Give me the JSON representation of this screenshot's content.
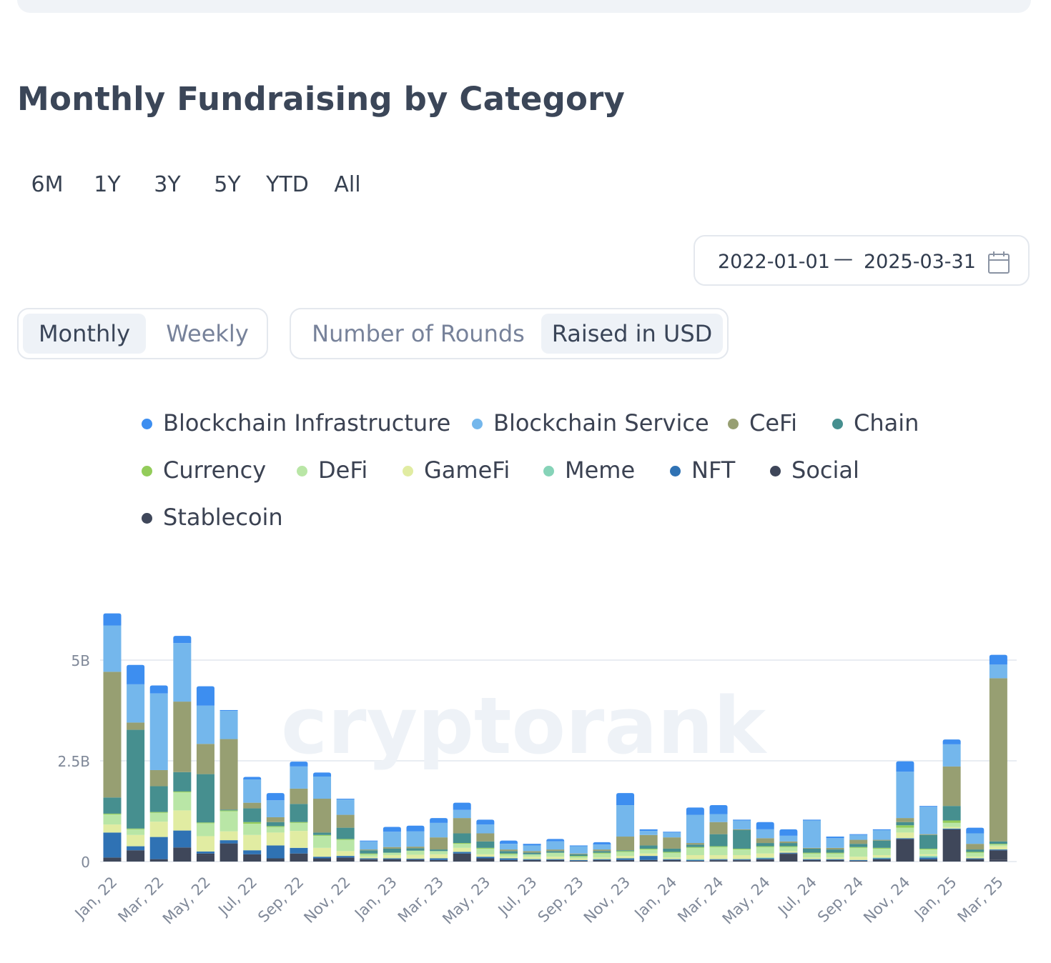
{
  "header": {
    "title": "Monthly Fundraising by Category"
  },
  "range_tabs": [
    "6M",
    "1Y",
    "3Y",
    "5Y",
    "YTD",
    "All"
  ],
  "date_range": {
    "start": "2022-01-01",
    "separator": "—",
    "end": "2025-03-31"
  },
  "period_toggle": {
    "options": [
      "Monthly",
      "Weekly"
    ],
    "active": "Monthly"
  },
  "metric_toggle": {
    "options": [
      "Number of Rounds",
      "Raised in USD"
    ],
    "active": "Raised in USD"
  },
  "legend": [
    {
      "label": "Blockchain Infrastructure",
      "color": "#3d8ef0"
    },
    {
      "label": "Blockchain Service",
      "color": "#74b7ec"
    },
    {
      "label": "CeFi",
      "color": "#979f72"
    },
    {
      "label": "Chain",
      "color": "#468f8f"
    },
    {
      "label": "Currency",
      "color": "#93cc5a"
    },
    {
      "label": "DeFi",
      "color": "#b9e6a6"
    },
    {
      "label": "GameFi",
      "color": "#e1eca2"
    },
    {
      "label": "Meme",
      "color": "#86d3b8"
    },
    {
      "label": "NFT",
      "color": "#2f72b4"
    },
    {
      "label": "Social",
      "color": "#3e4659"
    },
    {
      "label": "Stablecoin",
      "color": "#3f475a"
    }
  ],
  "watermark": "cryptorank",
  "chart_data": {
    "type": "bar",
    "stacked": true,
    "y_ticks": [
      "0",
      "2.5B",
      "5B"
    ],
    "ylim": [
      0,
      6.3
    ],
    "grid": true,
    "legend_position": "top",
    "x_tick_labels": [
      "Jan, 22",
      "Mar, 22",
      "May, 22",
      "Jul, 22",
      "Sep, 22",
      "Nov, 22",
      "Jan, 23",
      "Mar, 23",
      "May, 23",
      "Jul, 23",
      "Sep, 23",
      "Nov, 23",
      "Jan, 24",
      "Mar, 24",
      "May, 24",
      "Jul, 24",
      "Sep, 24",
      "Nov, 24",
      "Jan, 25",
      "Mar, 25"
    ],
    "categories": [
      "Jan, 22",
      "Feb, 22",
      "Mar, 22",
      "Apr, 22",
      "May, 22",
      "Jun, 22",
      "Jul, 22",
      "Aug, 22",
      "Sep, 22",
      "Oct, 22",
      "Nov, 22",
      "Dec, 22",
      "Jan, 23",
      "Feb, 23",
      "Mar, 23",
      "Apr, 23",
      "May, 23",
      "Jun, 23",
      "Jul, 23",
      "Aug, 23",
      "Sep, 23",
      "Oct, 23",
      "Nov, 23",
      "Dec, 23",
      "Jan, 24",
      "Feb, 24",
      "Mar, 24",
      "Apr, 24",
      "May, 24",
      "Jun, 24",
      "Jul, 24",
      "Aug, 24",
      "Sep, 24",
      "Oct, 24",
      "Nov, 24",
      "Dec, 24",
      "Jan, 25",
      "Feb, 25",
      "Mar, 25"
    ],
    "unit": "B USD",
    "series": [
      {
        "name": "Stablecoin",
        "color": "#3f475a",
        "values": [
          0.1,
          0.28,
          0.06,
          0.35,
          0.15,
          0.45,
          0.18,
          0.08,
          0.2,
          0.08,
          0.08,
          0.04,
          0.06,
          0.05,
          0.04,
          0.2,
          0.08,
          0.04,
          0.04,
          0.04,
          0.02,
          0.04,
          0.04,
          0.04,
          0.04,
          0.02,
          0.02,
          0.02,
          0.04,
          0.18,
          0.04,
          0.04,
          0.02,
          0.06,
          0.56,
          0.06,
          0.8,
          0.06,
          0.04
        ]
      },
      {
        "name": "Social",
        "color": "#3e4659",
        "values": [
          0.0,
          0.0,
          0.0,
          0.0,
          0.05,
          0.0,
          0.0,
          0.0,
          0.0,
          0.0,
          0.02,
          0.02,
          0.0,
          0.0,
          0.0,
          0.0,
          0.0,
          0.0,
          0.0,
          0.0,
          0.0,
          0.0,
          0.0,
          0.0,
          0.0,
          0.0,
          0.02,
          0.02,
          0.02,
          0.02,
          0.0,
          0.0,
          0.0,
          0.0,
          0.0,
          0.0,
          0.0,
          0.0,
          0.24
        ]
      },
      {
        "name": "NFT",
        "color": "#2f72b4",
        "values": [
          0.62,
          0.1,
          0.55,
          0.42,
          0.05,
          0.08,
          0.1,
          0.32,
          0.14,
          0.04,
          0.04,
          0.02,
          0.02,
          0.02,
          0.04,
          0.04,
          0.04,
          0.04,
          0.02,
          0.02,
          0.02,
          0.02,
          0.04,
          0.1,
          0.02,
          0.02,
          0.02,
          0.02,
          0.02,
          0.02,
          0.02,
          0.02,
          0.02,
          0.02,
          0.02,
          0.04,
          0.02,
          0.02,
          0.02
        ]
      },
      {
        "name": "Meme",
        "color": "#86d3b8",
        "values": [
          0.0,
          0.0,
          0.0,
          0.0,
          0.0,
          0.0,
          0.0,
          0.0,
          0.0,
          0.0,
          0.0,
          0.0,
          0.0,
          0.0,
          0.0,
          0.0,
          0.0,
          0.0,
          0.0,
          0.0,
          0.0,
          0.0,
          0.0,
          0.0,
          0.0,
          0.02,
          0.0,
          0.0,
          0.02,
          0.0,
          0.0,
          0.0,
          0.0,
          0.02,
          0.0,
          0.04,
          0.0,
          0.0,
          0.0
        ]
      },
      {
        "name": "GameFi",
        "color": "#e1eca2",
        "values": [
          0.2,
          0.28,
          0.38,
          0.5,
          0.38,
          0.22,
          0.38,
          0.32,
          0.42,
          0.22,
          0.12,
          0.04,
          0.08,
          0.1,
          0.1,
          0.1,
          0.06,
          0.04,
          0.06,
          0.06,
          0.04,
          0.04,
          0.06,
          0.06,
          0.04,
          0.1,
          0.1,
          0.1,
          0.1,
          0.04,
          0.04,
          0.04,
          0.08,
          0.06,
          0.14,
          0.04,
          0.04,
          0.04,
          0.08
        ]
      },
      {
        "name": "DeFi",
        "color": "#b9e6a6",
        "values": [
          0.25,
          0.14,
          0.22,
          0.45,
          0.32,
          0.5,
          0.28,
          0.14,
          0.2,
          0.3,
          0.28,
          0.06,
          0.06,
          0.1,
          0.08,
          0.1,
          0.14,
          0.06,
          0.06,
          0.1,
          0.04,
          0.1,
          0.1,
          0.1,
          0.12,
          0.18,
          0.2,
          0.14,
          0.16,
          0.1,
          0.1,
          0.1,
          0.22,
          0.16,
          0.12,
          0.12,
          0.1,
          0.1,
          0.04
        ]
      },
      {
        "name": "Currency",
        "color": "#93cc5a",
        "values": [
          0.02,
          0.02,
          0.02,
          0.02,
          0.02,
          0.02,
          0.04,
          0.02,
          0.02,
          0.02,
          0.02,
          0.02,
          0.0,
          0.0,
          0.0,
          0.02,
          0.02,
          0.02,
          0.0,
          0.0,
          0.02,
          0.02,
          0.02,
          0.02,
          0.02,
          0.02,
          0.02,
          0.02,
          0.02,
          0.02,
          0.02,
          0.02,
          0.02,
          0.02,
          0.06,
          0.02,
          0.06,
          0.02,
          0.02
        ]
      },
      {
        "name": "Chain",
        "color": "#468f8f",
        "values": [
          0.4,
          2.45,
          0.64,
          0.48,
          1.2,
          0.02,
          0.34,
          0.1,
          0.45,
          0.06,
          0.28,
          0.08,
          0.1,
          0.06,
          0.04,
          0.24,
          0.16,
          0.06,
          0.04,
          0.04,
          0.04,
          0.04,
          0.02,
          0.08,
          0.08,
          0.06,
          0.3,
          0.46,
          0.08,
          0.08,
          0.1,
          0.08,
          0.08,
          0.18,
          0.08,
          0.34,
          0.36,
          0.06,
          0.06
        ]
      },
      {
        "name": "CeFi",
        "color": "#979f72",
        "values": [
          3.12,
          0.18,
          0.4,
          1.75,
          0.75,
          1.75,
          0.14,
          0.12,
          0.38,
          0.84,
          0.32,
          0.02,
          0.04,
          0.04,
          0.3,
          0.38,
          0.2,
          0.04,
          0.04,
          0.04,
          0.02,
          0.04,
          0.34,
          0.26,
          0.28,
          0.04,
          0.3,
          0.02,
          0.12,
          0.04,
          0.02,
          0.04,
          0.1,
          0.02,
          0.1,
          0.02,
          0.98,
          0.14,
          4.05
        ]
      },
      {
        "name": "Blockchain Service",
        "color": "#74b7ec",
        "values": [
          1.15,
          0.95,
          1.9,
          1.45,
          0.95,
          0.7,
          0.58,
          0.42,
          0.55,
          0.55,
          0.38,
          0.2,
          0.38,
          0.38,
          0.36,
          0.2,
          0.22,
          0.14,
          0.14,
          0.2,
          0.18,
          0.12,
          0.78,
          0.1,
          0.12,
          0.7,
          0.2,
          0.22,
          0.22,
          0.14,
          0.68,
          0.24,
          0.12,
          0.24,
          1.15,
          0.68,
          0.55,
          0.26,
          0.34
        ]
      },
      {
        "name": "Blockchain Infrastructure",
        "color": "#3d8ef0",
        "values": [
          0.3,
          0.48,
          0.2,
          0.18,
          0.48,
          0.02,
          0.06,
          0.18,
          0.12,
          0.1,
          0.02,
          0.02,
          0.12,
          0.14,
          0.12,
          0.18,
          0.12,
          0.08,
          0.04,
          0.06,
          0.02,
          0.06,
          0.3,
          0.04,
          0.02,
          0.18,
          0.22,
          0.02,
          0.18,
          0.16,
          0.02,
          0.04,
          0.02,
          0.02,
          0.26,
          0.02,
          0.12,
          0.14,
          0.24
        ]
      }
    ]
  }
}
